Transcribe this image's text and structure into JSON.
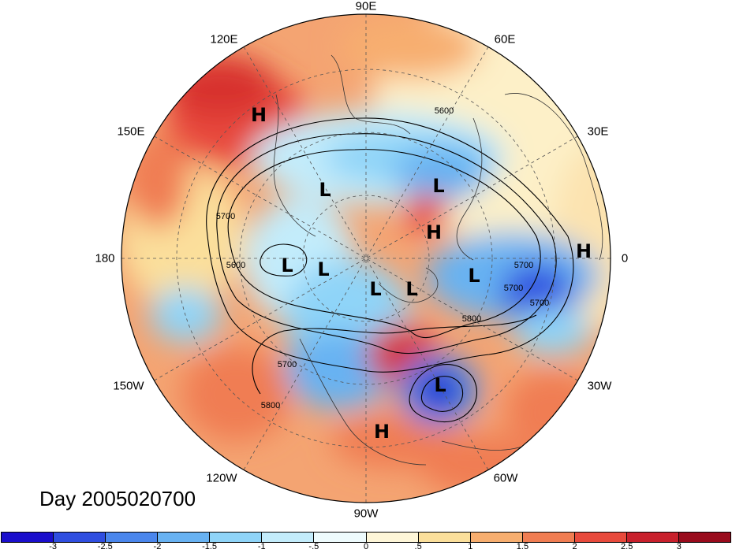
{
  "title": "Day 2005020700",
  "lon_labels": {
    "lon_90e": "90E",
    "lon_60e": "60E",
    "lon_120e": "120E",
    "lon_150e": "150E",
    "lon_30e": "30E",
    "lon_180": "180",
    "lon_0": "0",
    "lon_150w": "150W",
    "lon_30w": "30W",
    "lon_120w": "120W",
    "lon_60w": "60W",
    "lon_90w": "90W"
  },
  "pressure_centers": [
    {
      "type": "H"
    },
    {
      "type": "L"
    },
    {
      "type": "L"
    },
    {
      "type": "H"
    },
    {
      "type": "H"
    },
    {
      "type": "L"
    },
    {
      "type": "L"
    },
    {
      "type": "L"
    },
    {
      "type": "L"
    },
    {
      "type": "L"
    },
    {
      "type": "L"
    },
    {
      "type": "H"
    }
  ],
  "contour_labels": [
    "5600",
    "5700",
    "5600",
    "5700",
    "5700",
    "5800",
    "5700",
    "5800",
    "5700"
  ],
  "colorbar": {
    "colors": [
      "#1a0ecc",
      "#2f4ee0",
      "#4a86ec",
      "#68b2f2",
      "#8fd4f8",
      "#c3ecfb",
      "#eefbfd",
      "#fef6d8",
      "#fbdf9b",
      "#f7ae6f",
      "#f07d52",
      "#e84a3c",
      "#c8202c",
      "#990b1c"
    ],
    "tick_labels": [
      "-3",
      "-2.5",
      "-2",
      "-1.5",
      "-1",
      "-.5",
      "0",
      ".5",
      "1",
      "1.5",
      "2",
      "2.5",
      "3"
    ]
  }
}
